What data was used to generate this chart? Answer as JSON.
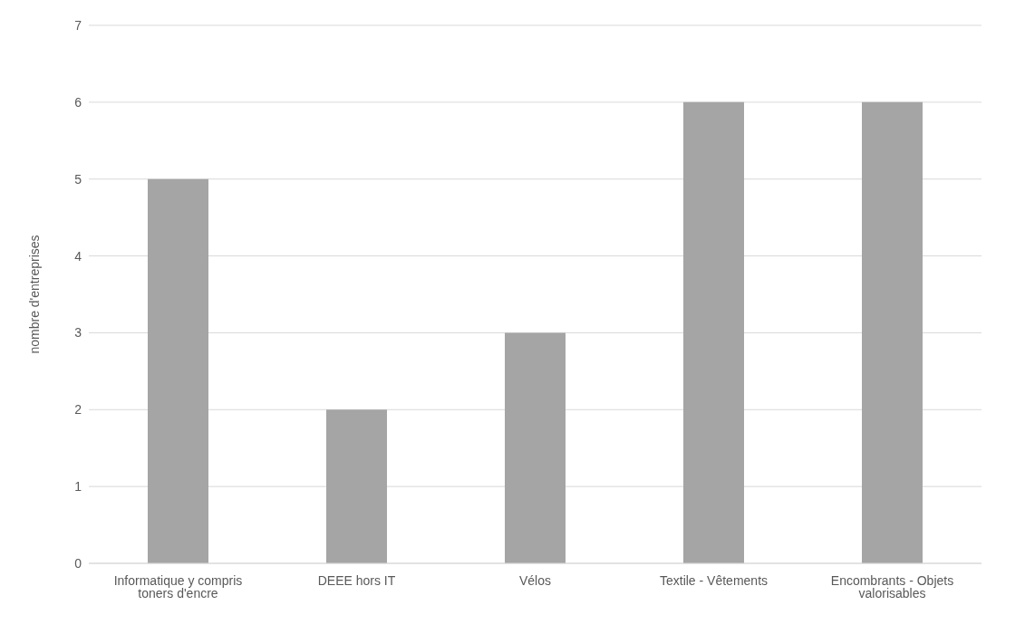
{
  "chart_data": {
    "type": "bar",
    "ylabel": "nombre d'entreprises",
    "categories": [
      "Informatique y compris toners d'encre",
      "DEEE hors IT",
      "Vélos",
      "Textile - Vêtements",
      "Encombrants - Objets valorisables"
    ],
    "values": [
      5,
      2,
      3,
      6,
      6
    ],
    "color": "#a5a5a5",
    "ylim": [
      0,
      7
    ],
    "yticks": [
      0,
      1,
      2,
      3,
      4,
      5,
      6,
      7
    ],
    "grid": "y"
  }
}
